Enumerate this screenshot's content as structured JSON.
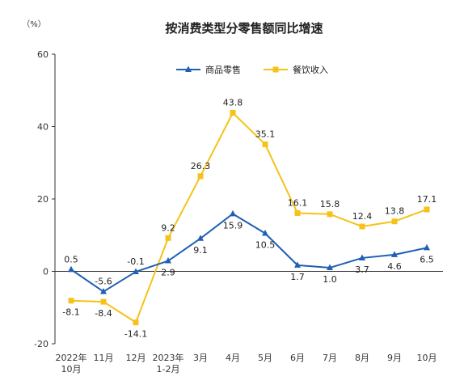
{
  "chart_data": {
    "type": "line",
    "title": "按消费类型分零售额同比增速",
    "ylabel": "（%）",
    "xlabel": "",
    "categories": [
      "2022年\n10月",
      "11月",
      "12月",
      "2023年\n1-2月",
      "3月",
      "4月",
      "5月",
      "6月",
      "7月",
      "8月",
      "9月",
      "10月"
    ],
    "ylim": [
      -20,
      60
    ],
    "yticks": [
      -20,
      0,
      20,
      40,
      60
    ],
    "grid": false,
    "legend_position": "top-center",
    "series": [
      {
        "name": "商品零售",
        "color": "#1f5fb4",
        "marker": "triangle",
        "values": [
          0.5,
          -5.6,
          -0.1,
          2.9,
          9.1,
          15.9,
          10.5,
          1.7,
          1.0,
          3.7,
          4.6,
          6.5
        ],
        "labels": [
          "0.5",
          "-5.6",
          "-0.1",
          "2.9",
          "9.1",
          "15.9",
          "10.5",
          "1.7",
          "1.0",
          "3.7",
          "4.6",
          "6.5"
        ]
      },
      {
        "name": "餐饮收入",
        "color": "#f5c21a",
        "marker": "square",
        "values": [
          -8.1,
          -8.4,
          -14.1,
          9.2,
          26.3,
          43.8,
          35.1,
          16.1,
          15.8,
          12.4,
          13.8,
          17.1
        ],
        "labels": [
          "-8.1",
          "-8.4",
          "-14.1",
          "9.2",
          "26.3",
          "43.8",
          "35.1",
          "16.1",
          "15.8",
          "12.4",
          "13.8",
          "17.1"
        ]
      }
    ]
  }
}
